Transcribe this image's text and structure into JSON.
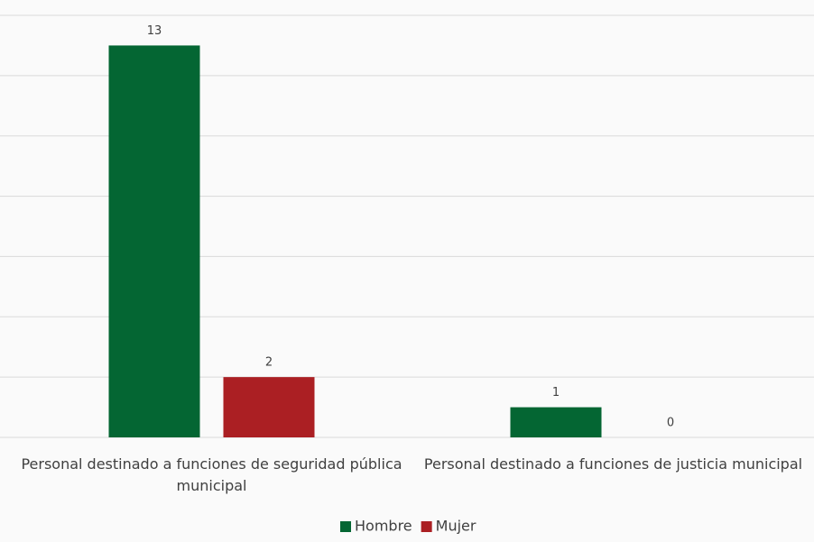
{
  "chart_data": {
    "type": "bar",
    "categories": [
      "Personal destinado a funciones de seguridad pública municipal",
      "Personal destinado a funciones de justicia municipal"
    ],
    "series": [
      {
        "name": "Hombre",
        "color": "#046633",
        "values": [
          13,
          1
        ]
      },
      {
        "name": "Mujer",
        "color": "#ab1f23",
        "values": [
          2,
          0
        ]
      }
    ],
    "ylim": [
      0,
      14
    ],
    "yticks": [
      0,
      2,
      4,
      6,
      8,
      10,
      12,
      14
    ],
    "grid": true,
    "legend": "bottom"
  }
}
